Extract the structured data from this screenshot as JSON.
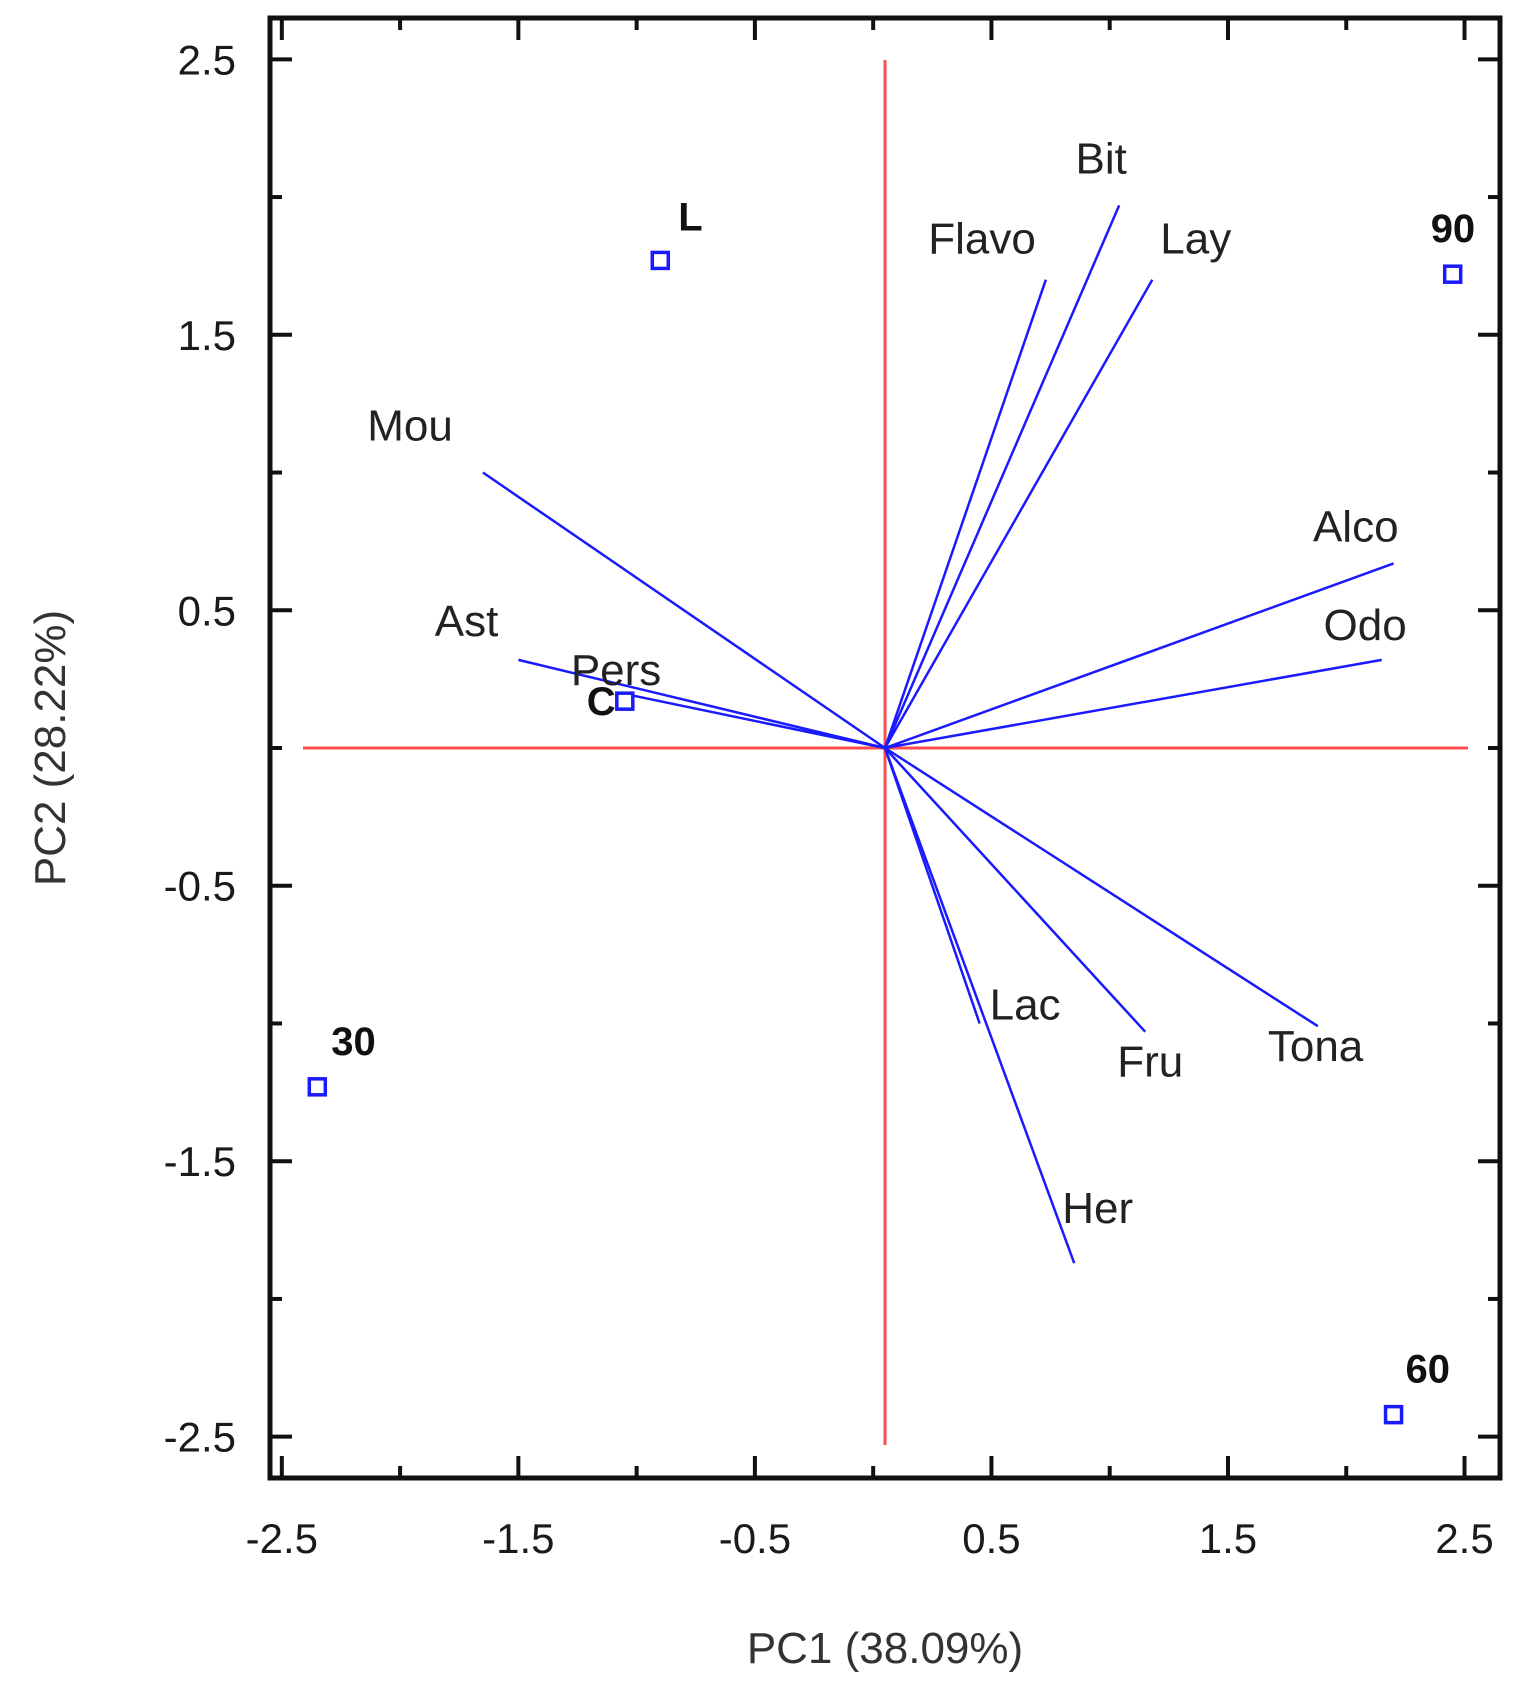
{
  "chart_data": {
    "type": "scatter",
    "subtype": "pca-biplot",
    "title": "",
    "xlabel": "PC1 (38.09%)",
    "ylabel": "PC2 (28.22%)",
    "xlim": [
      -2.55,
      2.65
    ],
    "ylim": [
      -2.65,
      2.65
    ],
    "xticks": [
      -2.5,
      -1.5,
      -0.5,
      0.5,
      1.5,
      2.5
    ],
    "yticks": [
      2.5,
      1.5,
      0.5,
      -0.5,
      -1.5,
      -2.5
    ],
    "xtick_labels": [
      "-2.5",
      "-1.5",
      "-0.5",
      "0.5",
      "1.5",
      "2.5"
    ],
    "ytick_labels": [
      "2.5",
      "1.5",
      "0.5",
      "-0.5",
      "-1.5",
      "-2.5"
    ],
    "grid": false,
    "reference_lines": {
      "x": 0.05,
      "y": 0.0,
      "color": "#ff4d4d"
    },
    "points_color": "#1a1aff",
    "vectors_color": "#1a1aff",
    "points": [
      {
        "label": "L",
        "x": -0.9,
        "y": 1.77
      },
      {
        "label": "90",
        "x": 2.45,
        "y": 1.72
      },
      {
        "label": "C",
        "x": -1.05,
        "y": 0.17
      },
      {
        "label": "30",
        "x": -2.35,
        "y": -1.23
      },
      {
        "label": "60",
        "x": 2.2,
        "y": -2.42
      }
    ],
    "vectors": [
      {
        "label": "Bit",
        "x": 1.04,
        "y": 1.97
      },
      {
        "label": "Flavo",
        "x": 0.73,
        "y": 1.7
      },
      {
        "label": "Lay",
        "x": 1.18,
        "y": 1.7
      },
      {
        "label": "Mou",
        "x": -1.65,
        "y": 1.0
      },
      {
        "label": "Ast",
        "x": -1.5,
        "y": 0.32
      },
      {
        "label": "Pers",
        "x": -1.07,
        "y": 0.2
      },
      {
        "label": "Alco",
        "x": 2.2,
        "y": 0.67
      },
      {
        "label": "Odo",
        "x": 2.15,
        "y": 0.32
      },
      {
        "label": "Lac",
        "x": 0.45,
        "y": -1.0
      },
      {
        "label": "Fru",
        "x": 1.15,
        "y": -1.03
      },
      {
        "label": "Tona",
        "x": 1.88,
        "y": -1.01
      },
      {
        "label": "Her",
        "x": 0.85,
        "y": -1.87
      }
    ]
  }
}
